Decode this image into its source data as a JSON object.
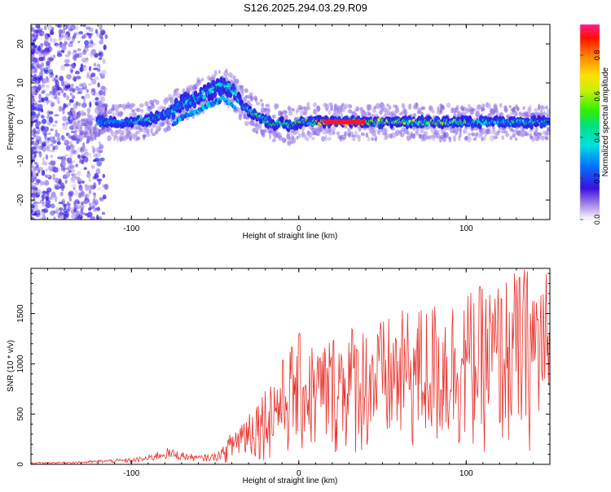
{
  "title": "S126.2025.294.03.29.R09",
  "charts": [
    {
      "type": "heatmap",
      "xlabel": "Height of straight line (km)",
      "ylabel": "Frequency (Hz)",
      "xlim": [
        -160,
        150
      ],
      "ylim": [
        -25,
        25
      ],
      "xticks": [
        -100,
        0,
        100
      ],
      "yticks": [
        -20,
        -10,
        0,
        10,
        20
      ],
      "colorbar": {
        "label": "Normalized spectral amplitude",
        "range": [
          0,
          0.95
        ],
        "ticks": [
          "0.0",
          "0.2",
          "0.4",
          "0.6",
          "0.8"
        ],
        "tick_values": [
          0,
          0.2,
          0.4,
          0.6,
          0.8
        ]
      },
      "ridge": {
        "description_points": [
          [
            -160,
            0
          ],
          [
            -130,
            0
          ],
          [
            -100,
            0
          ],
          [
            -90,
            0.5
          ],
          [
            -80,
            2
          ],
          [
            -70,
            4.5
          ],
          [
            -60,
            6.5
          ],
          [
            -50,
            8.5
          ],
          [
            -45,
            9.5
          ],
          [
            -40,
            8
          ],
          [
            -35,
            5
          ],
          [
            -30,
            3
          ],
          [
            -25,
            1.5
          ],
          [
            -20,
            0.5
          ],
          [
            -15,
            -1
          ],
          [
            -12,
            0
          ],
          [
            -5,
            -1
          ],
          [
            0,
            0
          ],
          [
            20,
            0
          ],
          [
            60,
            0
          ],
          [
            100,
            0
          ],
          [
            120,
            0
          ],
          [
            150,
            0
          ]
        ],
        "peak_amplitude_x": [
          15,
          40
        ],
        "peak_amplitude": 0.95
      }
    },
    {
      "type": "line",
      "xlabel": "Height of straight line (km)",
      "ylabel": "SNR (10 * v/v)",
      "xlim": [
        -160,
        150
      ],
      "ylim": [
        0,
        1950
      ],
      "xticks": [
        -100,
        0,
        100
      ],
      "yticks": [
        0,
        500,
        1000,
        1500
      ],
      "color": "#e8302a",
      "envelope": [
        [
          -160,
          20
        ],
        [
          -130,
          30
        ],
        [
          -115,
          50
        ],
        [
          -100,
          60
        ],
        [
          -90,
          90
        ],
        [
          -80,
          170
        ],
        [
          -70,
          130
        ],
        [
          -60,
          90
        ],
        [
          -50,
          110
        ],
        [
          -45,
          180
        ],
        [
          -40,
          320
        ],
        [
          -35,
          450
        ],
        [
          -30,
          550
        ],
        [
          -25,
          650
        ],
        [
          -20,
          750
        ],
        [
          -15,
          900
        ],
        [
          -10,
          1000
        ],
        [
          -5,
          1150
        ],
        [
          0,
          1250
        ],
        [
          10,
          1150
        ],
        [
          20,
          1250
        ],
        [
          30,
          1350
        ],
        [
          40,
          1350
        ],
        [
          50,
          1380
        ],
        [
          60,
          1450
        ],
        [
          70,
          1500
        ],
        [
          80,
          1550
        ],
        [
          90,
          1600
        ],
        [
          100,
          1650
        ],
        [
          110,
          1700
        ],
        [
          120,
          1750
        ],
        [
          130,
          1850
        ],
        [
          140,
          1900
        ],
        [
          150,
          1850
        ]
      ]
    }
  ]
}
